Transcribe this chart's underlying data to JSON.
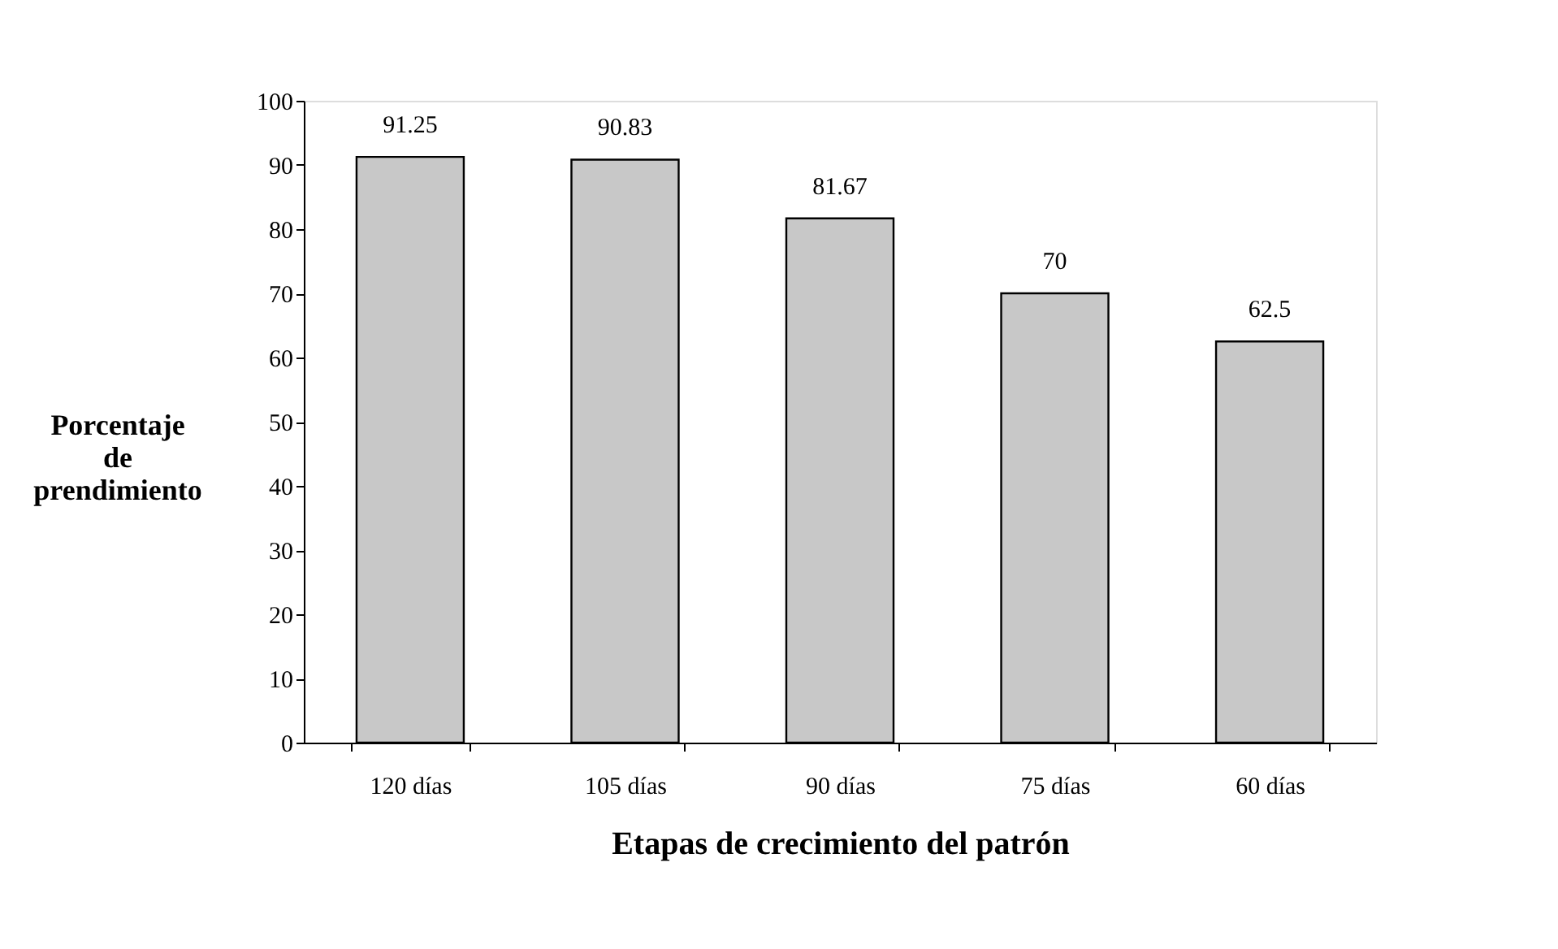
{
  "chart_data": {
    "type": "bar",
    "xlabel": "Etapas de crecimiento del patrón",
    "ylabel": "Porcentaje de prendimiento",
    "categories": [
      "120 días",
      "105 días",
      "90 días",
      "75 días",
      "60 días"
    ],
    "values": [
      91.25,
      90.83,
      81.67,
      70,
      62.5
    ],
    "color": "#c8c8c8",
    "ylim": [
      0,
      100
    ],
    "yticks": [
      0,
      10,
      20,
      30,
      40,
      50,
      60,
      70,
      80,
      90,
      100
    ],
    "grid": false,
    "data_labels": true
  }
}
